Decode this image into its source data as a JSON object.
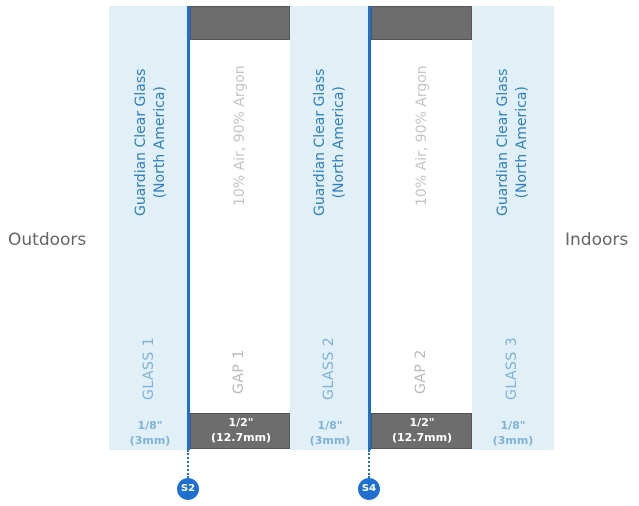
{
  "outdoors_label": "Outdoors",
  "indoors_label": "Indoors",
  "glass": [
    {
      "label": "GLASS 1",
      "material_line1": "Guardian Clear Glass",
      "material_line2": "(North America)",
      "thickness_line1": "1/8\"",
      "thickness_line2": "(3mm)"
    },
    {
      "label": "GLASS 2",
      "material_line1": "Guardian Clear Glass",
      "material_line2": "(North America)",
      "thickness_line1": "1/8\"",
      "thickness_line2": "(3mm)"
    },
    {
      "label": "GLASS 3",
      "material_line1": "Guardian Clear Glass",
      "material_line2": "(North America)",
      "thickness_line1": "1/8\"",
      "thickness_line2": "(3mm)"
    }
  ],
  "gaps": [
    {
      "label": "GAP 1",
      "fill": "10% Air, 90% Argon",
      "thickness_line1": "1/2\"",
      "thickness_line2": "(12.7mm)"
    },
    {
      "label": "GAP 2",
      "fill": "10% Air, 90% Argon",
      "thickness_line1": "1/2\"",
      "thickness_line2": "(12.7mm)"
    }
  ],
  "surfaces": [
    {
      "badge": "S2"
    },
    {
      "badge": "S4"
    }
  ],
  "colors": {
    "glass": "#e1eff7",
    "coating": "#1f6fd0",
    "spacer": "#6d6d6d"
  }
}
